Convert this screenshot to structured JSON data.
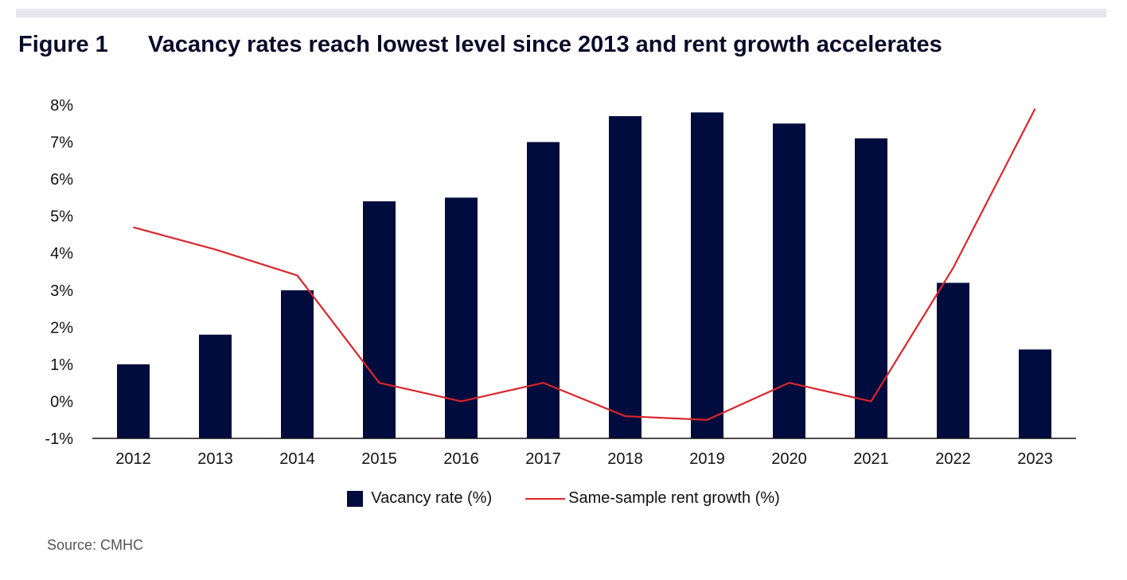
{
  "figure": {
    "label": "Figure 1",
    "title": "Vacancy rates reach lowest level since 2013 and rent growth accelerates"
  },
  "source": "Source: CMHC",
  "colors": {
    "bar": "#000c3d",
    "line": "#d9262c",
    "axis": "#111111"
  },
  "chart_data": {
    "type": "bar",
    "categories": [
      "2012",
      "2013",
      "2014",
      "2015",
      "2016",
      "2017",
      "2018",
      "2019",
      "2020",
      "2021",
      "2022",
      "2023"
    ],
    "series": [
      {
        "name": "Vacancy rate (%)",
        "type": "bar",
        "values": [
          1.0,
          1.8,
          3.0,
          5.4,
          5.5,
          7.0,
          7.7,
          7.8,
          7.5,
          7.1,
          3.2,
          1.4
        ]
      },
      {
        "name": "Same-sample rent growth (%)",
        "type": "line",
        "values": [
          4.7,
          4.1,
          3.4,
          0.5,
          0.0,
          0.5,
          -0.4,
          -0.5,
          0.5,
          0.0,
          3.6,
          7.9
        ]
      }
    ],
    "ylim": [
      -1,
      8
    ],
    "yticks": [
      "-1%",
      "0%",
      "1%",
      "2%",
      "3%",
      "4%",
      "5%",
      "6%",
      "7%",
      "8%"
    ],
    "grid": false,
    "legend_position": "bottom-center"
  }
}
